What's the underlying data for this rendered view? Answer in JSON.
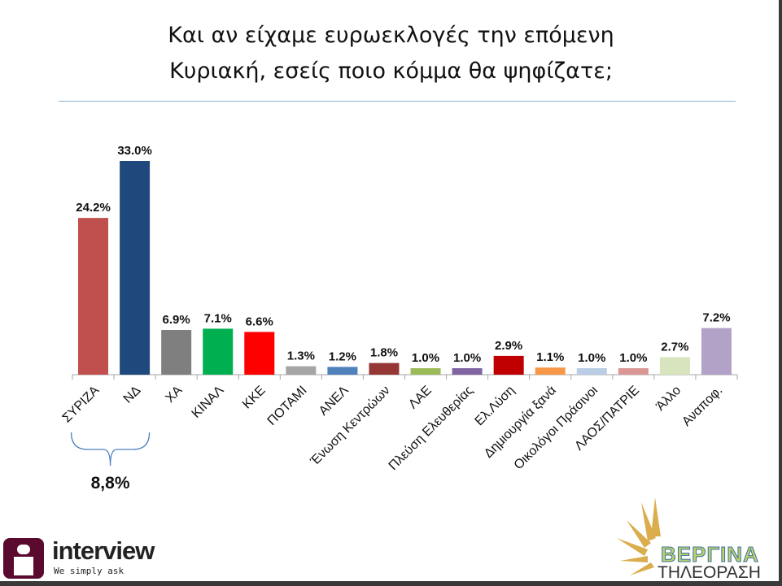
{
  "chart_data": {
    "type": "bar",
    "title": "Και αν είχαμε ευρωεκλογές την επόμενη Κυριακή, εσείς ποιο κόμμα θα ψηφίζατε;",
    "title_lines": [
      "Και αν είχαμε ευρωεκλογές την επόμενη",
      "Κυριακή, εσείς ποιο κόμμα θα ψηφίζατε;"
    ],
    "categories": [
      "ΣΥΡΙΖΑ",
      "ΝΔ",
      "ΧΑ",
      "ΚΙΝΑΛ",
      "ΚΚΕ",
      "ΠΟΤΑΜΙ",
      "ΑΝΕΛ",
      "Ένωση Κεντρώων",
      "ΛΑΕ",
      "Πλεύση Ελευθερίας",
      "Ελ.Λύση",
      "Δημιουργία ξανά",
      "Οικολόγοι Πράσινοι",
      "ΛΑΟΣ/ΠΑΤΡΙΕ",
      "Άλλο",
      "Αναποφ."
    ],
    "values": [
      24.2,
      33.0,
      6.9,
      7.1,
      6.6,
      1.3,
      1.2,
      1.8,
      1.0,
      1.0,
      2.9,
      1.1,
      1.0,
      1.0,
      2.7,
      7.2
    ],
    "data_labels": [
      "24.2%",
      "33.0%",
      "6.9%",
      "7.1%",
      "6.6%",
      "1.3%",
      "1.2%",
      "1.8%",
      "1.0%",
      "1.0%",
      "2.9%",
      "1.1%",
      "1.0%",
      "1.0%",
      "2.7%",
      "7.2%"
    ],
    "colors": [
      "#c0504d",
      "#1f497d",
      "#7f7f7f",
      "#00b050",
      "#ff0000",
      "#a5a5a5",
      "#4f81bd",
      "#953735",
      "#9bbb59",
      "#8064a2",
      "#c00000",
      "#f79646",
      "#b9cde5",
      "#d99694",
      "#d7e4bd",
      "#b3a2c7"
    ],
    "ylim": [
      0,
      34
    ],
    "grid": false,
    "legend": "none",
    "annotation": {
      "text": "8,8%",
      "spans": [
        "ΣΥΡΙΖΑ",
        "ΝΔ"
      ]
    }
  },
  "logos": {
    "left": {
      "name": "interview",
      "tagline": "We simply ask"
    },
    "right": {
      "name": "ΒΕΡΓΙΝΑ",
      "subtitle": "ΤΗΛΕΟΡΑΣΗ"
    }
  }
}
